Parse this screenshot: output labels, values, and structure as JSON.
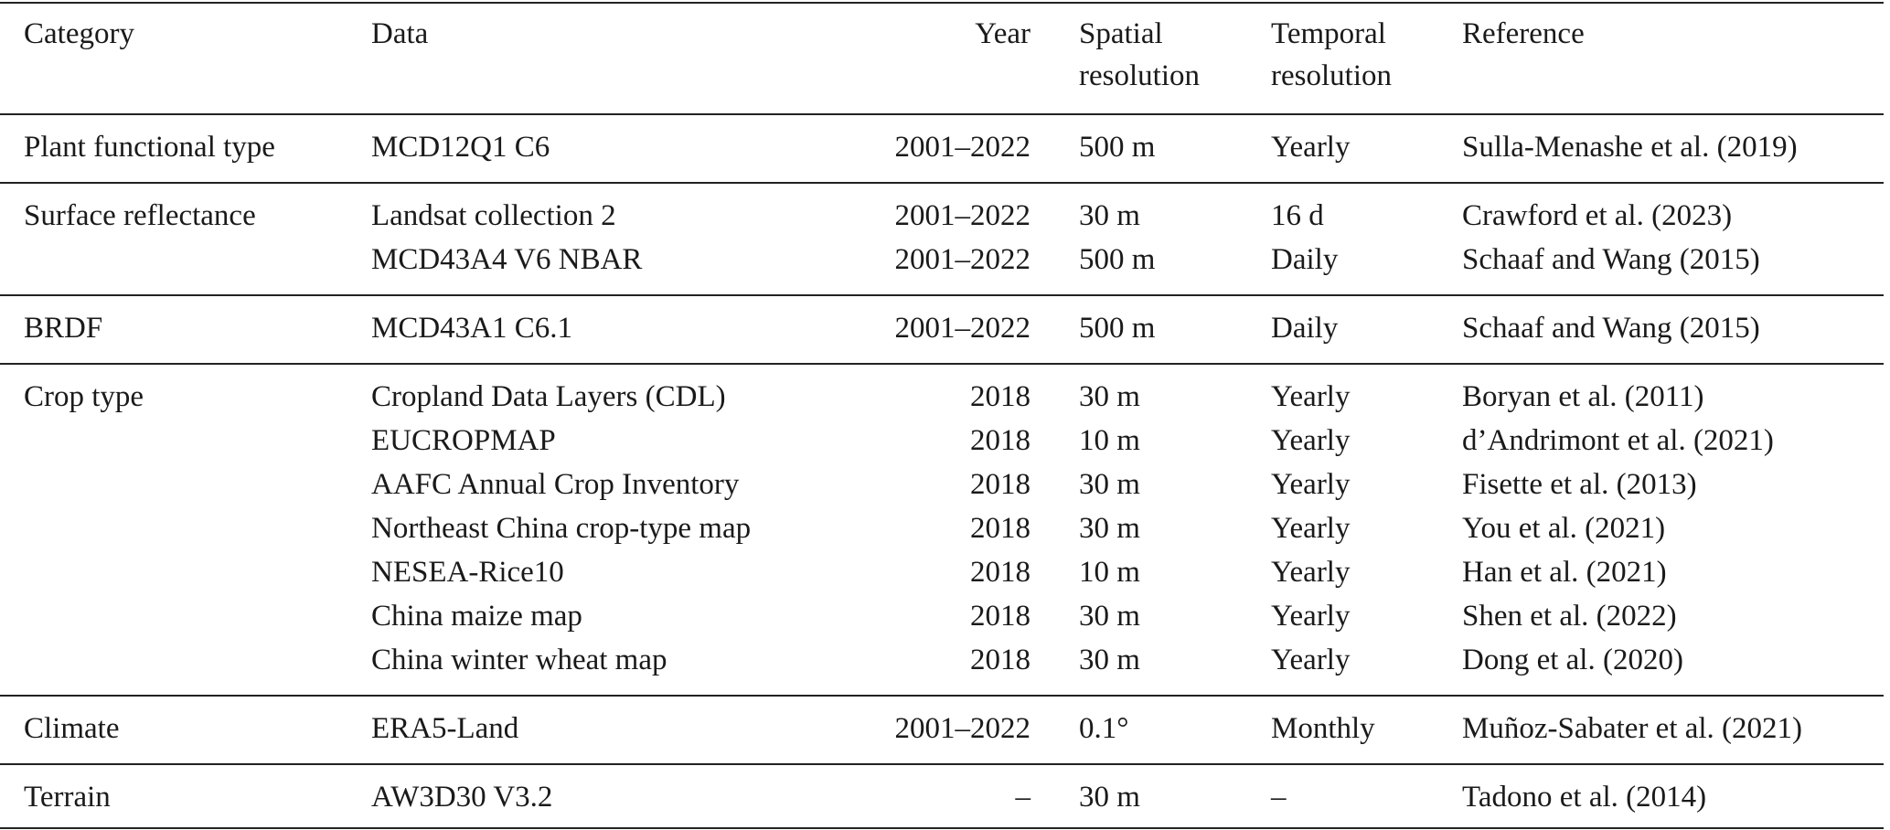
{
  "table": {
    "header": [
      "Category",
      "Data",
      "Year",
      "Spatial resolution",
      "Temporal resolution",
      "Reference"
    ],
    "groups": [
      {
        "category": "Plant functional type",
        "rows": [
          [
            "MCD12Q1 C6",
            "2001–2022",
            "500 m",
            "Yearly",
            "Sulla-Menashe et al. (2019)"
          ]
        ]
      },
      {
        "category": "Surface reflectance",
        "rows": [
          [
            "Landsat collection 2",
            "2001–2022",
            "30 m",
            "16 d",
            "Crawford et al. (2023)"
          ],
          [
            "MCD43A4 V6 NBAR",
            "2001–2022",
            "500 m",
            "Daily",
            "Schaaf and Wang (2015)"
          ]
        ]
      },
      {
        "category": "BRDF",
        "rows": [
          [
            "MCD43A1 C6.1",
            "2001–2022",
            "500 m",
            "Daily",
            "Schaaf and Wang (2015)"
          ]
        ]
      },
      {
        "category": "Crop type",
        "rows": [
          [
            "Cropland Data Layers (CDL)",
            "2018",
            "30 m",
            "Yearly",
            "Boryan et al. (2011)"
          ],
          [
            "EUCROPMAP",
            "2018",
            "10 m",
            "Yearly",
            "d’Andrimont et al. (2021)"
          ],
          [
            "AAFC Annual Crop Inventory",
            "2018",
            "30 m",
            "Yearly",
            "Fisette et al. (2013)"
          ],
          [
            "Northeast China crop-type map",
            "2018",
            "30 m",
            "Yearly",
            "You et al. (2021)"
          ],
          [
            "NESEA-Rice10",
            "2018",
            "10 m",
            "Yearly",
            "Han et al. (2021)"
          ],
          [
            "China maize map",
            "2018",
            "30 m",
            "Yearly",
            "Shen et al. (2022)"
          ],
          [
            "China winter wheat map",
            "2018",
            "30 m",
            "Yearly",
            "Dong et al. (2020)"
          ]
        ]
      },
      {
        "category": "Climate",
        "rows": [
          [
            "ERA5-Land",
            "2001–2022",
            "0.1°",
            "Monthly",
            "Muñoz-Sabater et al. (2021)"
          ]
        ]
      },
      {
        "category": "Terrain",
        "rows": [
          [
            "AW3D30 V3.2",
            "–",
            "30 m",
            "–",
            "Tadono et al. (2014)"
          ]
        ]
      }
    ]
  }
}
